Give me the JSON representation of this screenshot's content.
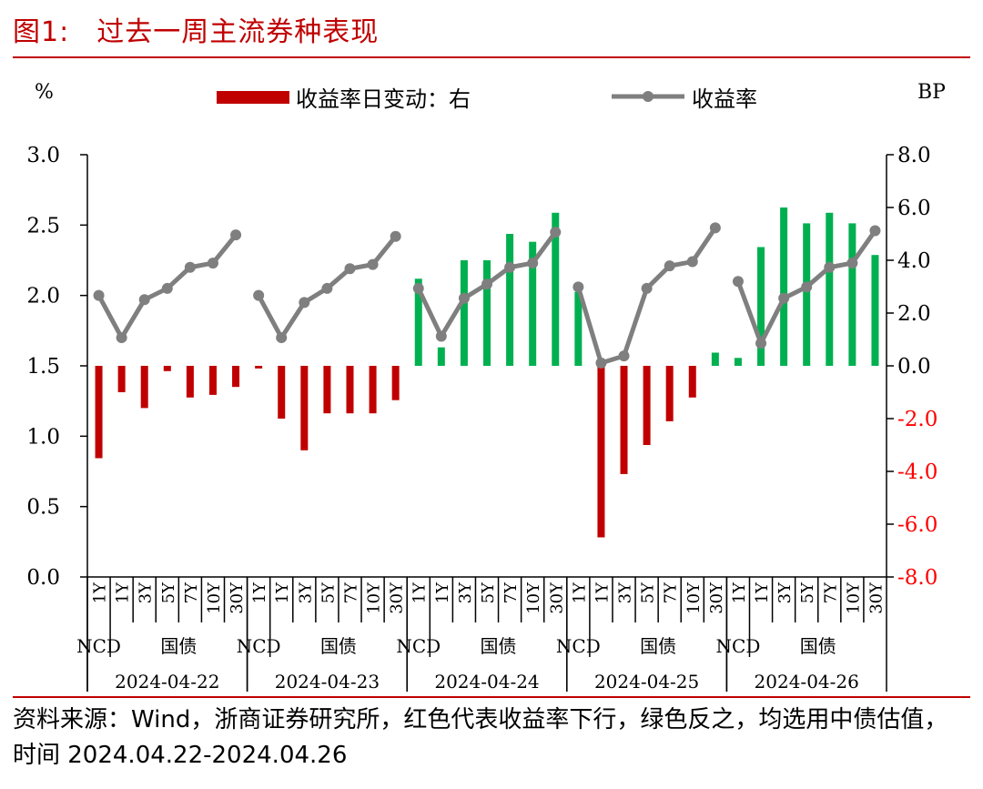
{
  "header": {
    "figure_label": "图1:",
    "title": "过去一周主流券种表现"
  },
  "source_text": "资料来源：Wind，浙商证券研究所，红色代表收益率下行，绿色反之，均选用中债估值，时间 2024.04.22-2024.04.26",
  "colors": {
    "title": "#c00000",
    "bar_down": "#c00000",
    "bar_up": "#00b050",
    "line": "#7f7f7f",
    "negative_tick": "#ff0000",
    "axis": "#000000"
  },
  "chart_data": {
    "type": "bar+line",
    "left_axis_unit": "%",
    "right_axis_unit": "BP",
    "legend": [
      "收益率日变动：右",
      "收益率"
    ],
    "legend_position": "top",
    "ylim_left": [
      0,
      3.0
    ],
    "ylim_right": [
      -8.0,
      8.0
    ],
    "yticks_left": [
      "0.0",
      "0.5",
      "1.0",
      "1.5",
      "2.0",
      "2.5",
      "3.0"
    ],
    "yticks_right": [
      "-8.0",
      "-6.0",
      "-4.0",
      "-2.0",
      "0.0",
      "2.0",
      "4.0",
      "6.0",
      "8.0"
    ],
    "tenors": [
      "1Y",
      "1Y",
      "3Y",
      "5Y",
      "7Y",
      "10Y",
      "30Y"
    ],
    "type_labels": [
      "NCD",
      "国债"
    ],
    "groups": [
      {
        "date": "2024-04-22",
        "yield": [
          2.0,
          1.7,
          1.97,
          2.05,
          2.2,
          2.23,
          2.43
        ],
        "change_bp": [
          -3.5,
          -1.0,
          -1.6,
          -0.2,
          -1.2,
          -1.1,
          -0.8
        ]
      },
      {
        "date": "2024-04-23",
        "yield": [
          2.0,
          1.7,
          1.95,
          2.05,
          2.19,
          2.22,
          2.42
        ],
        "change_bp": [
          -0.1,
          -2.0,
          -3.2,
          -1.8,
          -1.8,
          -1.8,
          -1.3
        ]
      },
      {
        "date": "2024-04-24",
        "yield": [
          2.05,
          1.71,
          1.98,
          2.08,
          2.2,
          2.23,
          2.45
        ],
        "change_bp": [
          3.3,
          0.7,
          4.0,
          4.0,
          5.0,
          4.7,
          5.8
        ]
      },
      {
        "date": "2024-04-25",
        "yield": [
          2.06,
          1.52,
          1.57,
          2.05,
          2.21,
          2.24,
          2.48
        ],
        "change_bp": [
          2.8,
          -6.5,
          -4.1,
          -3.0,
          -2.1,
          -1.2,
          0.5
        ]
      },
      {
        "date": "2024-04-26",
        "yield": [
          2.1,
          1.66,
          1.98,
          2.06,
          2.2,
          2.23,
          2.46
        ],
        "change_bp": [
          0.3,
          4.5,
          6.0,
          5.4,
          5.8,
          5.4,
          4.2
        ]
      }
    ]
  }
}
